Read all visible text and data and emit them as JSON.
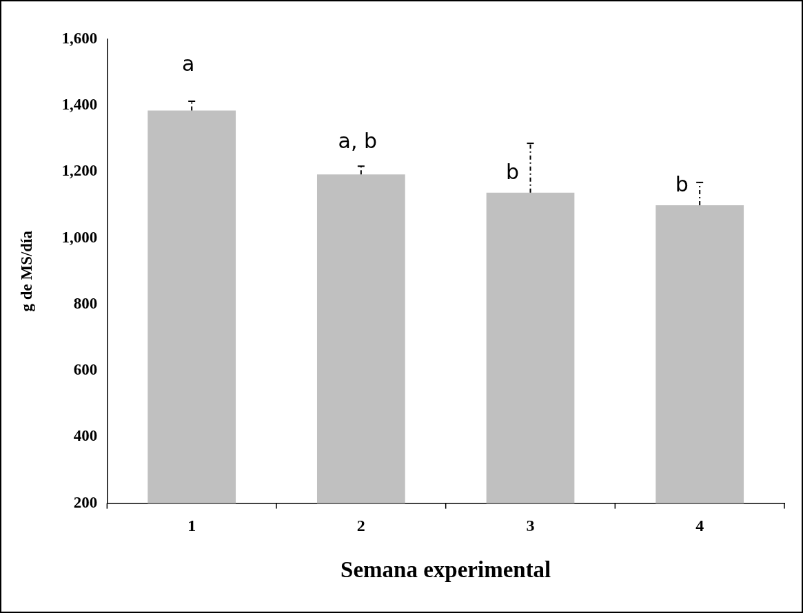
{
  "chart_data": {
    "type": "bar",
    "xlabel": "Semana experimental",
    "ylabel": "g de MS/día",
    "categories": [
      "1",
      "2",
      "3",
      "4"
    ],
    "values": [
      1385,
      1192,
      1137,
      1099
    ],
    "errors": [
      [
        1385,
        1413
      ],
      [
        1192,
        1217
      ],
      [
        1137,
        1286
      ],
      [
        1099,
        1168
      ]
    ],
    "color": "#c0c0c0",
    "ylim": [
      200,
      1600
    ],
    "yticks": [
      {
        "value": 200,
        "label": "200"
      },
      {
        "value": 400,
        "label": "400"
      },
      {
        "value": 600,
        "label": "600"
      },
      {
        "value": 800,
        "label": "800"
      },
      {
        "value": 1000,
        "label": "1,000"
      },
      {
        "value": 1200,
        "label": "1,200"
      },
      {
        "value": 1400,
        "label": "1,400"
      },
      {
        "value": 1600,
        "label": "1,600"
      }
    ],
    "annotations": [
      "a",
      "a, b",
      "b",
      "b"
    ],
    "grid": false,
    "legend": false
  }
}
